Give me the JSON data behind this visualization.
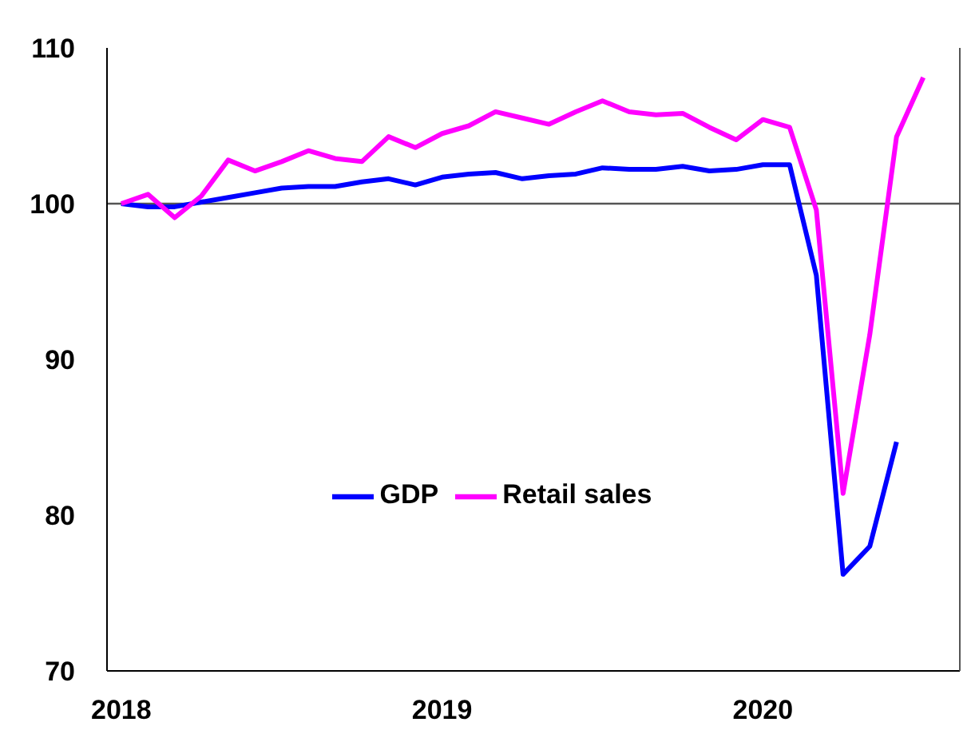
{
  "chart_data": {
    "type": "line",
    "x": [
      "2018-01",
      "2018-02",
      "2018-03",
      "2018-04",
      "2018-05",
      "2018-06",
      "2018-07",
      "2018-08",
      "2018-09",
      "2018-10",
      "2018-11",
      "2018-12",
      "2019-01",
      "2019-02",
      "2019-03",
      "2019-04",
      "2019-05",
      "2019-06",
      "2019-07",
      "2019-08",
      "2019-09",
      "2019-10",
      "2019-11",
      "2019-12",
      "2020-01",
      "2020-02",
      "2020-03",
      "2020-04",
      "2020-05",
      "2020-06",
      "2020-07"
    ],
    "series": [
      {
        "name": "GDP",
        "color": "#0000ff",
        "values": [
          100,
          99.8,
          99.8,
          100.1,
          100.4,
          100.7,
          101.0,
          101.1,
          101.1,
          101.4,
          101.6,
          101.2,
          101.7,
          101.9,
          102.0,
          101.6,
          101.8,
          101.9,
          102.3,
          102.2,
          102.2,
          102.4,
          102.1,
          102.2,
          102.5,
          102.5,
          95.4,
          76.2,
          78.0,
          84.7,
          null
        ]
      },
      {
        "name": "Retail sales",
        "color": "#ff00ff",
        "values": [
          100,
          100.6,
          99.1,
          100.5,
          102.8,
          102.1,
          102.7,
          103.4,
          102.9,
          102.7,
          104.3,
          103.6,
          104.5,
          105.0,
          105.9,
          105.5,
          105.1,
          105.9,
          106.6,
          105.9,
          105.7,
          105.8,
          104.9,
          104.1,
          105.4,
          104.9,
          99.6,
          81.4,
          91.6,
          104.3,
          108.1
        ]
      }
    ],
    "xlim": [
      "2017-12-15",
      "2020-08-12"
    ],
    "xticks": [
      {
        "value": "2018-01",
        "label": "2018"
      },
      {
        "value": "2019-01",
        "label": "2019"
      },
      {
        "value": "2020-01",
        "label": "2020"
      }
    ],
    "ylim": [
      70,
      110
    ],
    "yticks": [
      70,
      80,
      90,
      100,
      110
    ],
    "ref_lines": [
      {
        "axis": "y",
        "value": 100
      }
    ],
    "grid": false,
    "legend": "center",
    "marker": "none",
    "line_style": "solid"
  }
}
